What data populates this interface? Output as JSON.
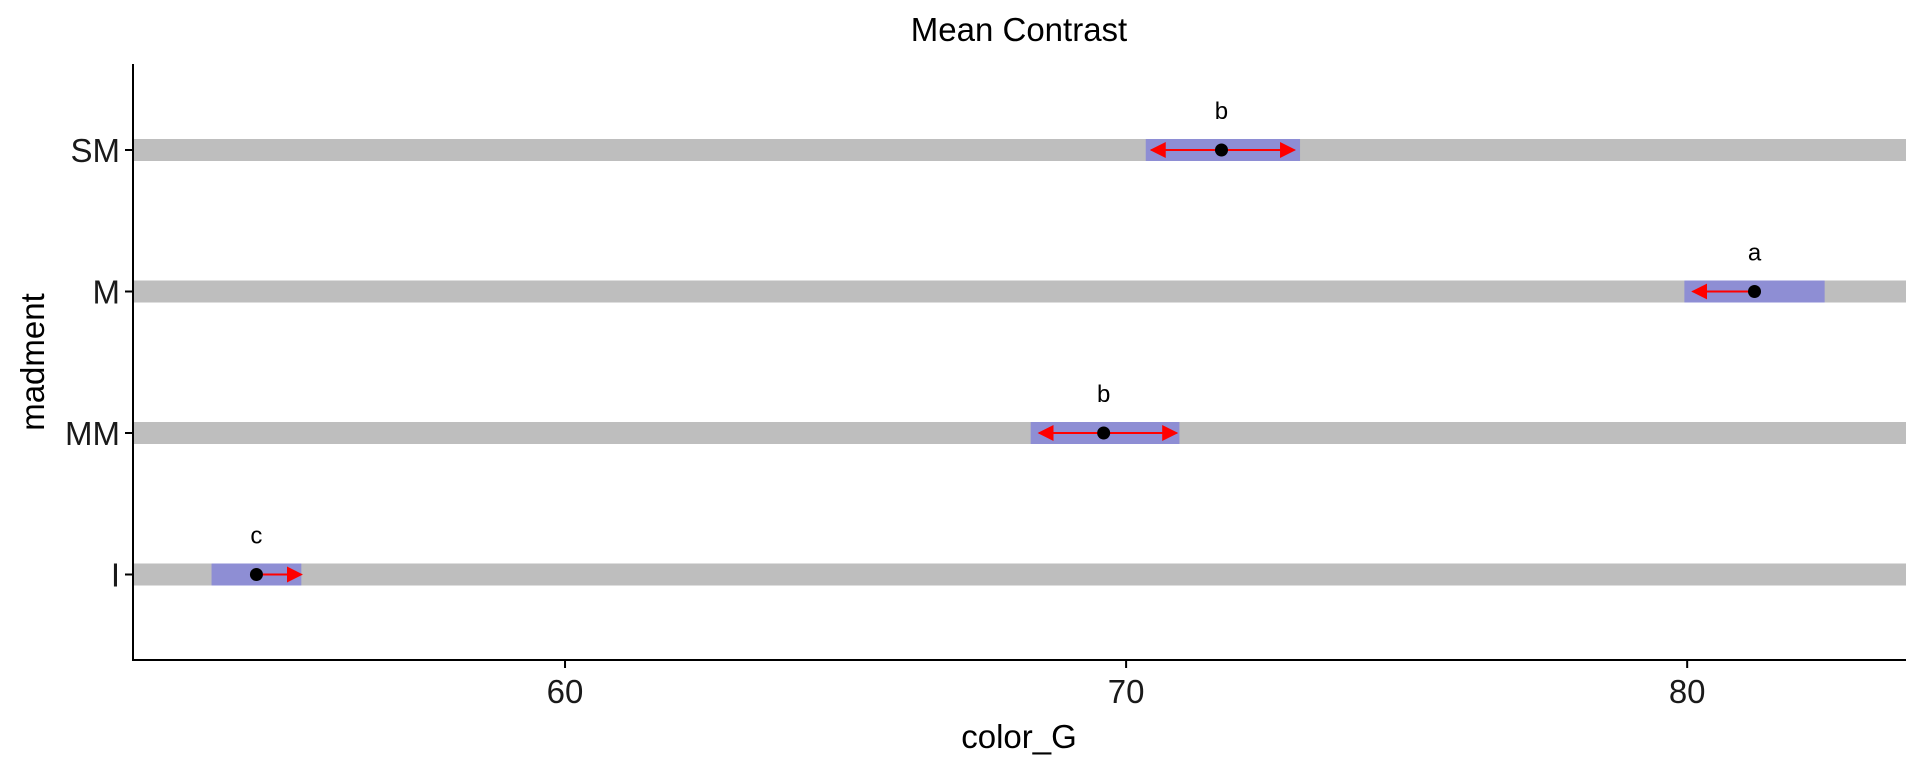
{
  "chart_data": {
    "type": "dot-interval",
    "title": "Mean Contrast",
    "xlabel": "color_G",
    "ylabel": "madment",
    "xlim": [
      52.3,
      83.9
    ],
    "xticks": [
      60,
      70,
      80
    ],
    "grid": false,
    "legend": "none",
    "categories": [
      "SM",
      "M",
      "MM",
      "I"
    ],
    "points": [
      {
        "category": "SM",
        "mean": 71.7,
        "ci_low": 70.35,
        "ci_high": 73.1,
        "comp_low": 70.45,
        "comp_high": 73.0,
        "letter": "b"
      },
      {
        "category": "M",
        "mean": 81.2,
        "ci_low": 79.95,
        "ci_high": 82.45,
        "comp_low": 80.1,
        "comp_high": null,
        "letter": "a"
      },
      {
        "category": "MM",
        "mean": 69.6,
        "ci_low": 68.3,
        "ci_high": 70.95,
        "comp_low": 68.45,
        "comp_high": 70.9,
        "letter": "b"
      },
      {
        "category": "I",
        "mean": 54.5,
        "ci_low": 53.7,
        "ci_high": 55.3,
        "comp_low": null,
        "comp_high": 55.3,
        "letter": "c"
      }
    ],
    "colors": {
      "band": "#bebebe",
      "ci": "#8e8ed4",
      "arrow": "#ff0000",
      "point": "#000000"
    }
  }
}
